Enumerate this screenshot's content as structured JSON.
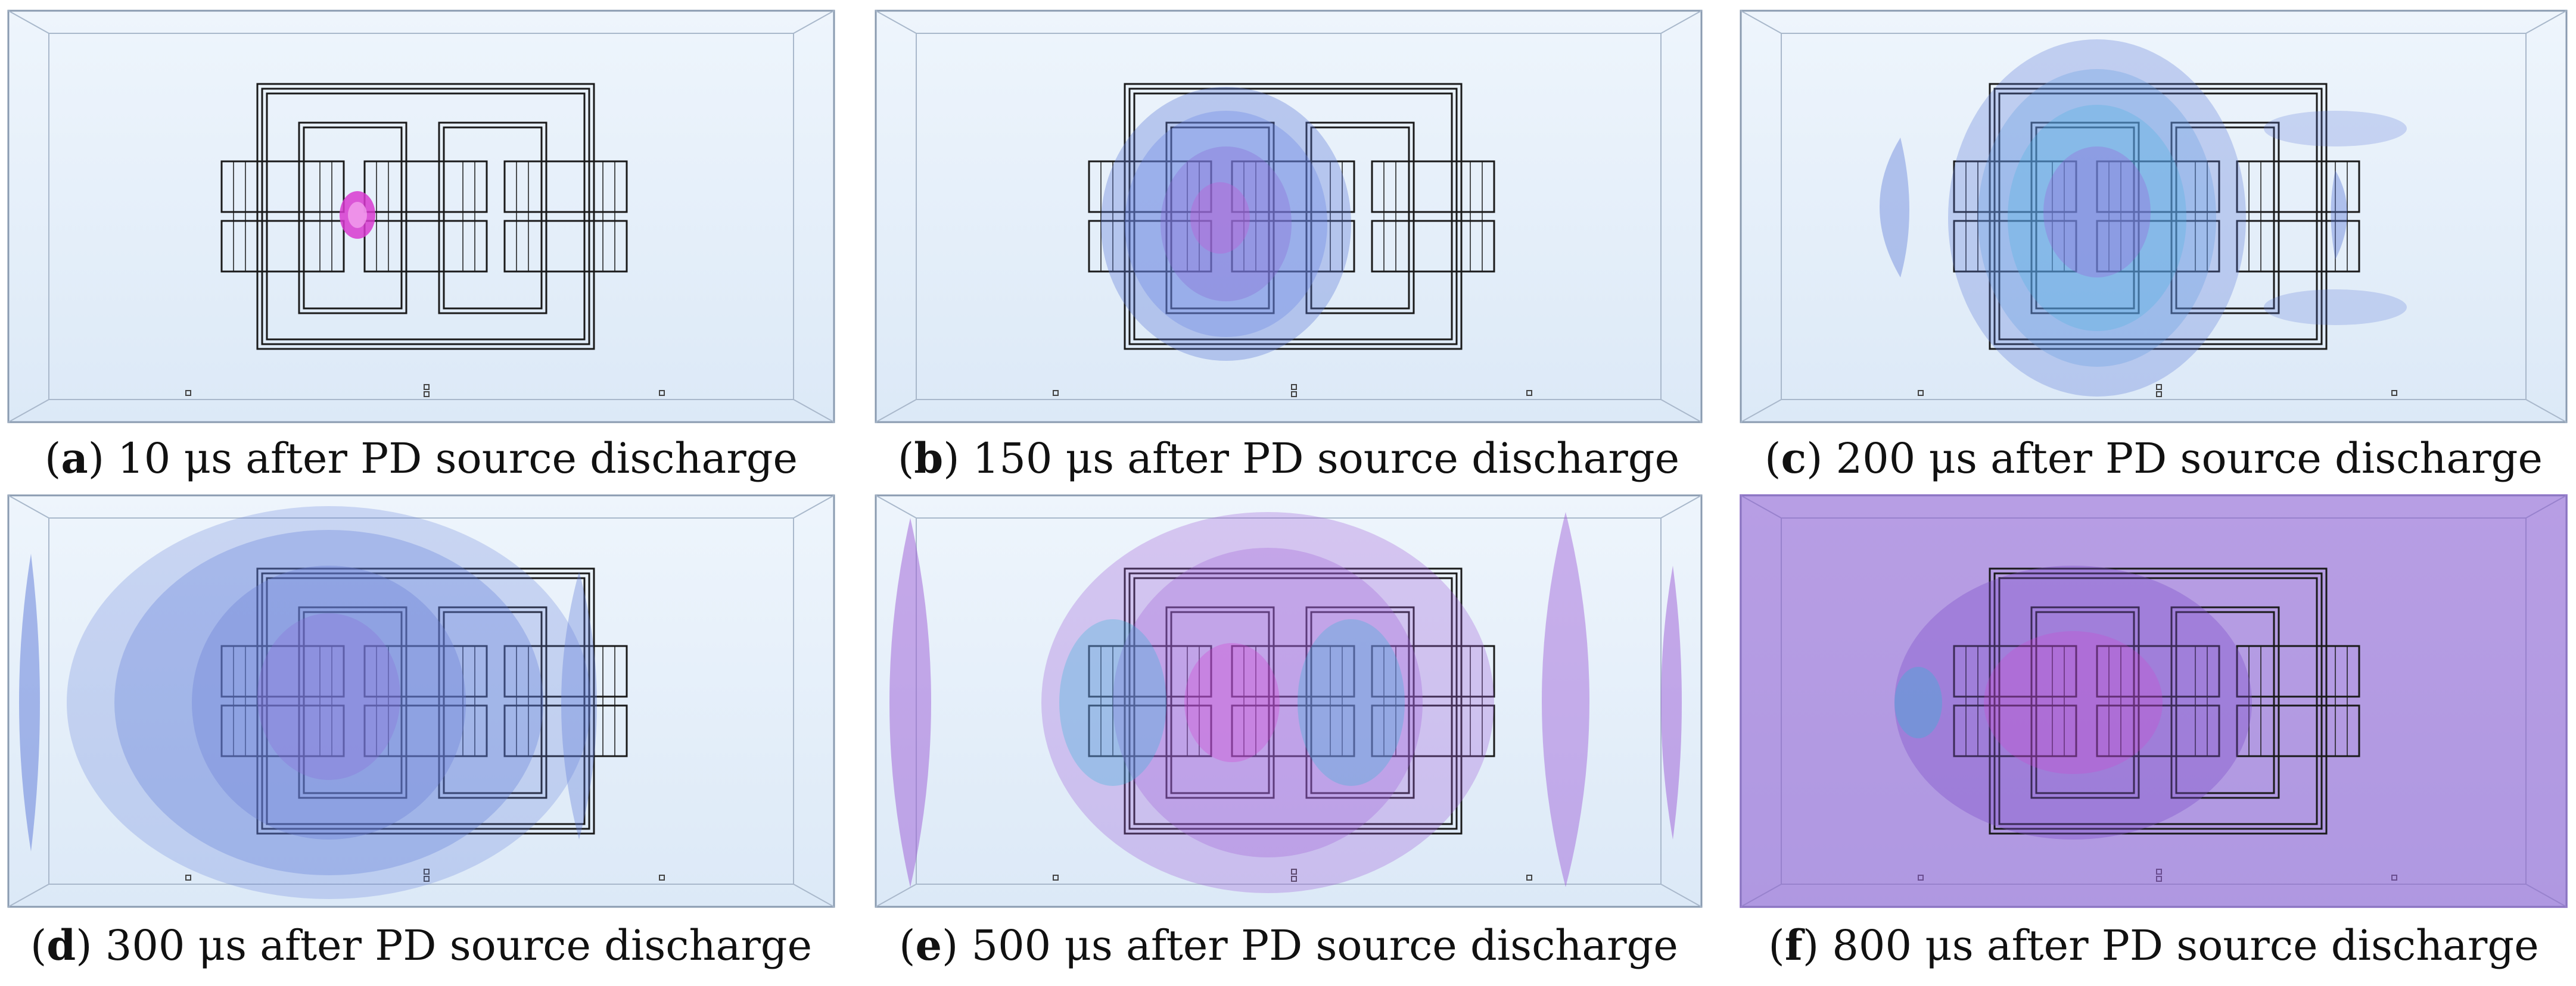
{
  "figure": {
    "panels": [
      {
        "letter": "a",
        "caption": "10 μs after PD source discharge"
      },
      {
        "letter": "b",
        "caption": "150 μs after PD source discharge"
      },
      {
        "letter": "c",
        "caption": "200 μs after PD source discharge"
      },
      {
        "letter": "d",
        "caption": "300 μs after PD source discharge"
      },
      {
        "letter": "e",
        "caption": "500 μs after PD source discharge"
      },
      {
        "letter": "f",
        "caption": "800 μs after PD source discharge"
      }
    ],
    "colors": {
      "tank_fill": "#e3eef9",
      "tank_edge": "#8a9bb0",
      "winding": "#1a1a1a",
      "wave_blue": "#5b78d8",
      "wave_purple": "#9b5bd6",
      "source_magenta": "#d83ad0",
      "cyan": "#2fb7d6"
    }
  }
}
